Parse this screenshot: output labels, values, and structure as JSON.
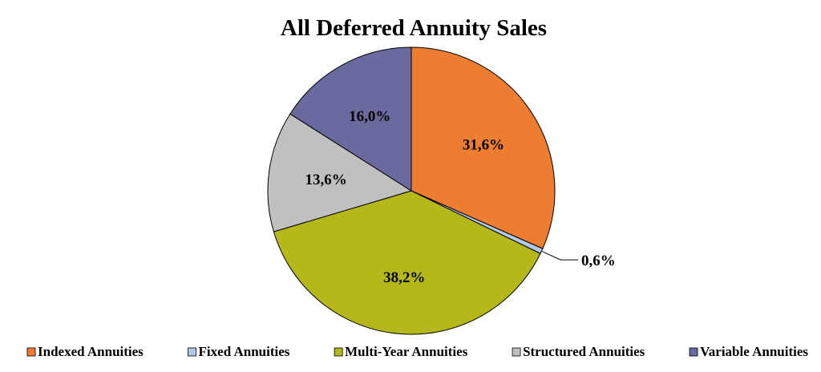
{
  "chart_data": {
    "type": "pie",
    "title": "All Deferred Annuity Sales",
    "categories": [
      "Indexed Annuities",
      "Fixed Annuities",
      "Multi-Year Annuities",
      "Structured Annuities",
      "Variable Annuities"
    ],
    "values": [
      31.6,
      0.6,
      38.2,
      13.6,
      16.0
    ],
    "labels": [
      "31,6%",
      "0,6%",
      "38,2%",
      "13,6%",
      "16,0%"
    ],
    "colors": [
      "#ED7D31",
      "#B4C7E7",
      "#B5B81A",
      "#C0C0C0",
      "#6A6A9E"
    ],
    "start_angle_deg": 0,
    "direction": "clockwise",
    "legend_position": "bottom"
  }
}
